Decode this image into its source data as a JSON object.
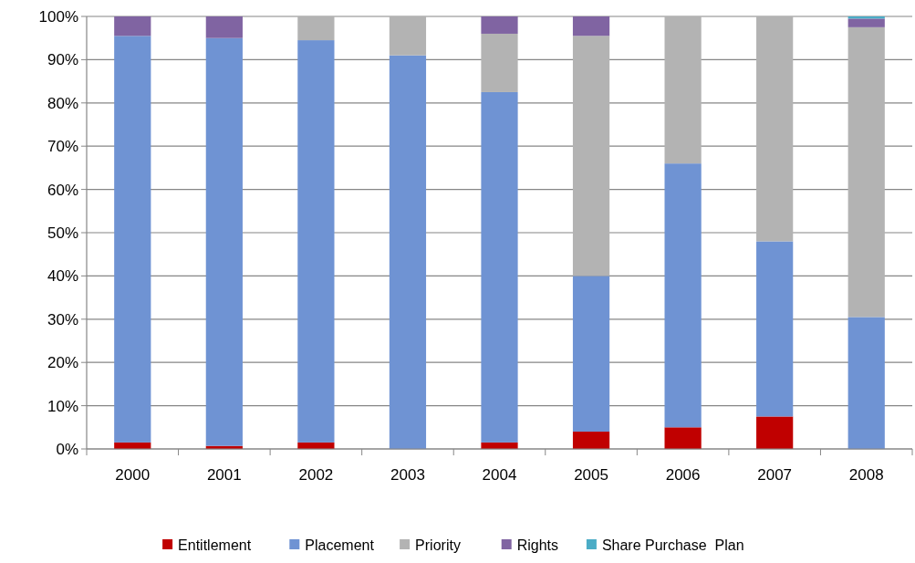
{
  "chart_data": {
    "type": "bar",
    "stacked": true,
    "categories": [
      "2000",
      "2001",
      "2002",
      "2003",
      "2004",
      "2005",
      "2006",
      "2007",
      "2008"
    ],
    "series": [
      {
        "name": "Entitlement",
        "color": "#c00000",
        "values": [
          1.5,
          0.7,
          1.5,
          0,
          1.5,
          4,
          5,
          7.5,
          0
        ]
      },
      {
        "name": "Placement",
        "color": "#6f93d3",
        "values": [
          94,
          94.3,
          93,
          91,
          81,
          36,
          61,
          40.5,
          30.5
        ]
      },
      {
        "name": "Priority",
        "color": "#b3b3b3",
        "values": [
          0,
          0,
          5.5,
          9,
          13.5,
          55.5,
          34,
          52,
          67
        ]
      },
      {
        "name": "Rights",
        "color": "#8064a2",
        "values": [
          4.5,
          5,
          0,
          0,
          4,
          4.5,
          0,
          0,
          2
        ]
      },
      {
        "name": "Share Purchase  Plan",
        "color": "#4bacc6",
        "values": [
          0,
          0,
          0,
          0,
          0,
          0,
          0,
          0,
          0.5
        ]
      }
    ],
    "ylim": [
      0,
      100
    ],
    "yticks": [
      {
        "value": 0,
        "label": "0%"
      },
      {
        "value": 10,
        "label": "10%"
      },
      {
        "value": 20,
        "label": "20%"
      },
      {
        "value": 30,
        "label": "30%"
      },
      {
        "value": 40,
        "label": "40%"
      },
      {
        "value": 50,
        "label": "50%"
      },
      {
        "value": 60,
        "label": "60%"
      },
      {
        "value": 70,
        "label": "70%"
      },
      {
        "value": 80,
        "label": "80%"
      },
      {
        "value": 90,
        "label": "90%"
      },
      {
        "value": 100,
        "label": "100%"
      }
    ],
    "grid": "y",
    "legend": "bottom"
  }
}
